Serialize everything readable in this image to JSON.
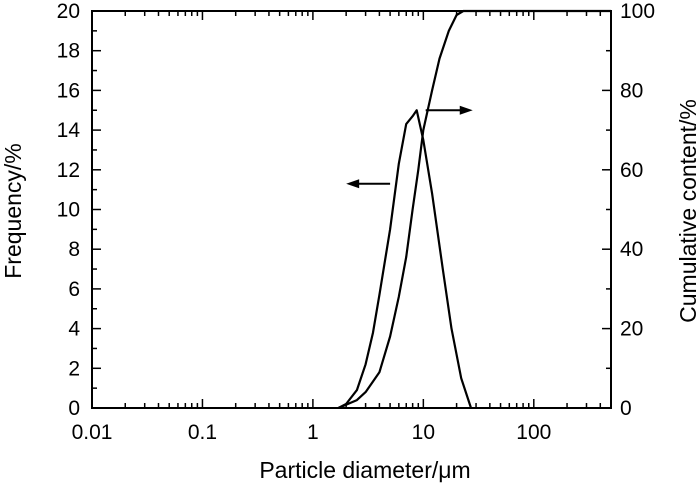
{
  "chart_data": {
    "type": "line",
    "title": "",
    "xlabel": "Particle diameter/μm",
    "ylabel_left": "Frequency/%",
    "ylabel_right": "Cumulative content/%",
    "x_scale": "log",
    "xlim": [
      0.01,
      500
    ],
    "ylim_left": [
      0,
      20
    ],
    "ylim_right": [
      0,
      100
    ],
    "x_ticks": [
      0.01,
      0.1,
      1,
      10,
      100
    ],
    "x_tick_labels": [
      "0.01",
      "0.1",
      "1",
      "10",
      "100"
    ],
    "y_left_ticks": [
      0,
      2,
      4,
      6,
      8,
      10,
      12,
      14,
      16,
      18,
      20
    ],
    "y_left_tick_labels": [
      "0",
      "2",
      "4",
      "6",
      "8",
      "10",
      "12",
      "14",
      "16",
      "18",
      "20"
    ],
    "y_right_ticks": [
      0,
      20,
      40,
      60,
      80,
      100
    ],
    "y_right_tick_labels": [
      "0",
      "20",
      "40",
      "60",
      "80",
      "100"
    ],
    "grid": false,
    "legend": "none",
    "line_color": "#000000",
    "series": [
      {
        "axis": "left",
        "points": [
          [
            1.7,
            0
          ],
          [
            2.0,
            0.2
          ],
          [
            2.5,
            0.9
          ],
          [
            3.0,
            2.2
          ],
          [
            3.5,
            3.8
          ],
          [
            4.0,
            5.7
          ],
          [
            5.0,
            9.0
          ],
          [
            6.0,
            12.3
          ],
          [
            7.0,
            14.3
          ],
          [
            8.0,
            14.7
          ],
          [
            8.7,
            15.0
          ],
          [
            10.0,
            13.5
          ],
          [
            12.0,
            10.8
          ],
          [
            15.0,
            7.0
          ],
          [
            18.0,
            4.0
          ],
          [
            22.0,
            1.5
          ],
          [
            27.0,
            0
          ]
        ]
      },
      {
        "axis": "right",
        "points": [
          [
            1.7,
            0
          ],
          [
            2.5,
            2
          ],
          [
            3.0,
            4
          ],
          [
            4.0,
            9
          ],
          [
            5.0,
            18
          ],
          [
            6.0,
            28
          ],
          [
            7.0,
            38
          ],
          [
            8.0,
            50
          ],
          [
            9.0,
            60
          ],
          [
            10.0,
            70
          ],
          [
            12.0,
            80
          ],
          [
            14.0,
            88
          ],
          [
            17.0,
            95
          ],
          [
            20.0,
            99
          ],
          [
            23.0,
            100
          ],
          [
            500,
            100
          ]
        ]
      }
    ],
    "annotations": [
      {
        "type": "arrow",
        "from": [
          10.5,
          15.0
        ],
        "to": [
          28.0,
          15.0
        ],
        "points_to": "right axis"
      },
      {
        "type": "arrow",
        "from": [
          5.0,
          11.3
        ],
        "to": [
          2.0,
          11.3
        ],
        "points_to": "left axis"
      }
    ]
  }
}
